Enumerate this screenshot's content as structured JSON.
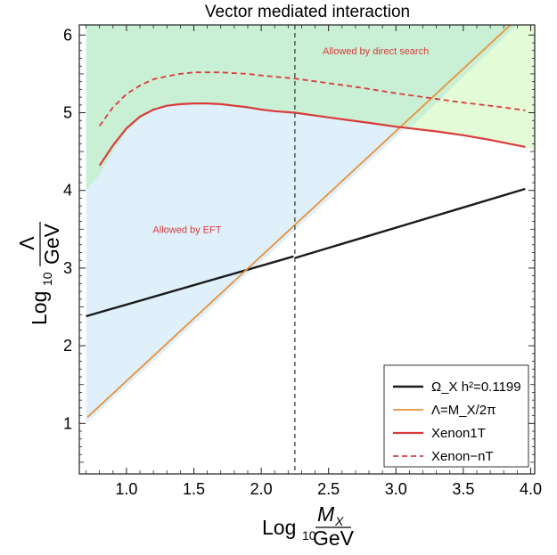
{
  "chart_data": {
    "type": "line",
    "title": "Vector mediated interaction",
    "xlabel": {
      "prefix": "Log",
      "sub": "10",
      "num": "M",
      "num_sub": "X",
      "den": "GeV"
    },
    "ylabel": {
      "prefix": "Log",
      "sub": "10",
      "num": "Λ",
      "den": "GeV"
    },
    "xlim": [
      0.65,
      4.03
    ],
    "ylim": [
      0.35,
      6.13
    ],
    "xticks": [
      1.0,
      1.5,
      2.0,
      2.5,
      3.0,
      3.5,
      4.0
    ],
    "xtick_labels": [
      "1.0",
      "1.5",
      "2.0",
      "2.5",
      "3.0",
      "3.5",
      "4.0"
    ],
    "yticks": [
      1,
      2,
      3,
      4,
      5,
      6
    ],
    "ytick_labels": [
      "1",
      "2",
      "3",
      "4",
      "5",
      "6"
    ],
    "grid": false,
    "legend_position": "bottom-right",
    "regions": [
      {
        "name": "Allowed by EFT",
        "color": "#dff0fb",
        "label_color": "#d93b3b",
        "label_at": [
          1.45,
          3.45
        ],
        "polygon": [
          [
            0.7,
            1.0
          ],
          [
            3.9,
            6.13
          ],
          [
            0.7,
            6.13
          ]
        ]
      },
      {
        "name": "Allowed by direct search",
        "color": "#c9f0d5",
        "label_color": "#d93b3b",
        "label_at": [
          2.85,
          5.75
        ],
        "polygon": [
          [
            0.7,
            4.0
          ],
          [
            0.8,
            4.2
          ],
          [
            0.9,
            4.5
          ],
          [
            1.0,
            4.75
          ],
          [
            1.1,
            4.92
          ],
          [
            1.2,
            5.02
          ],
          [
            1.3,
            5.08
          ],
          [
            1.4,
            5.1
          ],
          [
            1.5,
            5.11
          ],
          [
            1.6,
            5.11
          ],
          [
            1.7,
            5.1
          ],
          [
            1.8,
            5.08
          ],
          [
            1.9,
            5.05
          ],
          [
            2.0,
            5.03
          ],
          [
            2.1,
            5.01
          ],
          [
            2.25,
            4.99
          ],
          [
            2.5,
            4.93
          ],
          [
            2.8,
            4.86
          ],
          [
            3.0,
            4.81
          ],
          [
            3.1,
            4.79
          ],
          [
            3.9,
            6.13
          ],
          [
            0.7,
            6.13
          ]
        ]
      },
      {
        "name": "",
        "color": "#e4fbd8",
        "polygon": [
          [
            3.1,
            4.79
          ],
          [
            3.3,
            4.75
          ],
          [
            3.5,
            4.7
          ],
          [
            3.7,
            4.65
          ],
          [
            3.9,
            4.6
          ],
          [
            4.03,
            4.52
          ],
          [
            4.03,
            6.13
          ],
          [
            3.9,
            6.13
          ]
        ]
      }
    ],
    "series": [
      {
        "name": "Ω_X h²=0.1199",
        "color": "#1b1b1b",
        "style": "solid",
        "width": 2.4,
        "segments": [
          {
            "x": [
              0.7,
              2.24
            ],
            "y": [
              2.38,
              3.15
            ]
          },
          {
            "x": [
              2.25,
              3.96
            ],
            "y": [
              3.13,
              4.02
            ]
          }
        ]
      },
      {
        "name": "Λ=M_X/2π",
        "color": "#e8923a",
        "style": "solid",
        "width": 1.8,
        "segments": [
          {
            "x": [
              0.71,
              3.85
            ],
            "y": [
              1.08,
              6.13
            ]
          }
        ]
      },
      {
        "name": "Xenon1T",
        "color": "#d93b3b",
        "style": "solid",
        "width": 2.2,
        "segments": [
          {
            "x": [
              0.8,
              0.9,
              1.0,
              1.1,
              1.2,
              1.3,
              1.4,
              1.5,
              1.6,
              1.7,
              1.8,
              1.9,
              2.0,
              2.1,
              2.25,
              2.5,
              2.8,
              3.0,
              3.3,
              3.5,
              3.7,
              3.96
            ],
            "y": [
              4.32,
              4.58,
              4.8,
              4.95,
              5.04,
              5.09,
              5.11,
              5.12,
              5.12,
              5.11,
              5.09,
              5.07,
              5.04,
              5.02,
              5.0,
              4.94,
              4.87,
              4.82,
              4.76,
              4.71,
              4.65,
              4.56
            ]
          }
        ]
      },
      {
        "name": "Xenon−nT",
        "color": "#d93b3b",
        "style": "dashed",
        "width": 1.8,
        "segments": [
          {
            "x": [
              0.8,
              0.9,
              1.0,
              1.1,
              1.2,
              1.3,
              1.4,
              1.5,
              1.6,
              1.7,
              1.8,
              1.9,
              2.0,
              2.25,
              2.5,
              2.75,
              3.0,
              3.25,
              3.5,
              3.75,
              3.96
            ],
            "y": [
              4.83,
              5.07,
              5.24,
              5.35,
              5.43,
              5.47,
              5.5,
              5.52,
              5.52,
              5.52,
              5.51,
              5.5,
              5.48,
              5.44,
              5.38,
              5.32,
              5.25,
              5.19,
              5.13,
              5.08,
              5.03
            ]
          }
        ]
      }
    ],
    "vertical_line": {
      "x": 2.25,
      "color": "#333333",
      "style": "dashed"
    },
    "legend": [
      {
        "label": "Ω_X h²=0.1199"
      },
      {
        "label": "Λ=M_X/2π"
      },
      {
        "label": "Xenon1T"
      },
      {
        "label": "Xenon−nT"
      }
    ]
  }
}
